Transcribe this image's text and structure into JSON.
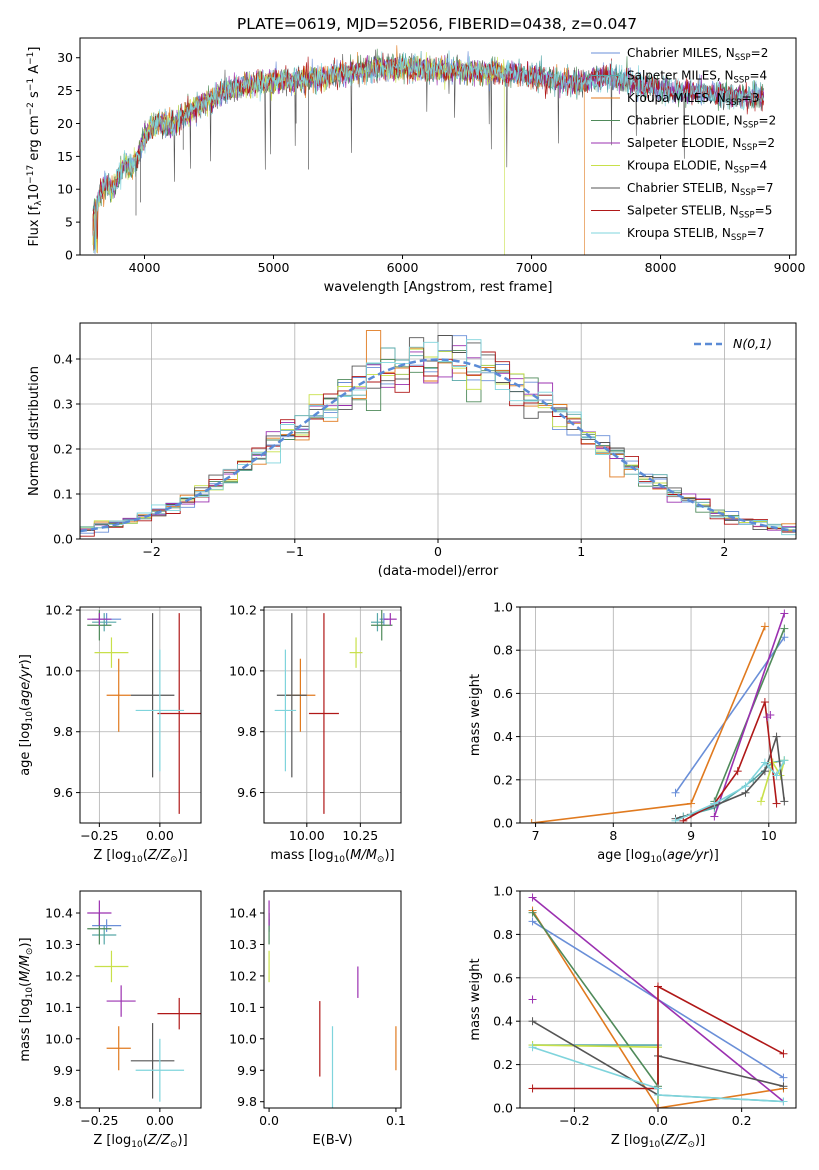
{
  "title": "PLATE=0619, MJD=52056, FIBERID=0438, z=0.047",
  "models": [
    {
      "name": "Chabrier MILES",
      "nssp": "2",
      "color": "#6a8fd8"
    },
    {
      "name": "Salpeter MILES",
      "nssp": "4",
      "color": "#57a8a8"
    },
    {
      "name": "Kroupa MILES",
      "nssp": "3",
      "color": "#e07a1f"
    },
    {
      "name": "Chabrier ELODIE",
      "nssp": "2",
      "color": "#4f8a5a"
    },
    {
      "name": "Salpeter ELODIE",
      "nssp": "2",
      "color": "#9b30b0"
    },
    {
      "name": "Kroupa ELODIE",
      "nssp": "4",
      "color": "#c8e04a"
    },
    {
      "name": "Chabrier STELIB",
      "nssp": "7",
      "color": "#555555"
    },
    {
      "name": "Salpeter STELIB",
      "nssp": "5",
      "color": "#b01818"
    },
    {
      "name": "Kroupa STELIB",
      "nssp": "7",
      "color": "#7fd4dc"
    }
  ],
  "chart_data": [
    {
      "type": "line",
      "title": "PLATE=0619, MJD=52056, FIBERID=0438, z=0.047",
      "xlabel": "wavelength [Angstrom, rest frame]",
      "ylabel": "Flux [f_λ 10^-17 erg cm^-2 s^-1 A^-1]",
      "xlim": [
        3500,
        9050
      ],
      "ylim": [
        0,
        33
      ],
      "xticks": [
        4000,
        5000,
        6000,
        7000,
        8000,
        9000
      ],
      "yticks": [
        0,
        5,
        10,
        15,
        20,
        25,
        30
      ],
      "legend": "upper right",
      "spectrum_anchor": {
        "x": [
          3600,
          3650,
          3700,
          3750,
          3800,
          3850,
          3900,
          3950,
          4000,
          4100,
          4200,
          4300,
          4400,
          4500,
          4700,
          5000,
          5200,
          5500,
          5800,
          6000,
          6300,
          6600,
          6900,
          7200,
          7400,
          7600,
          8000,
          8400,
          8800
        ],
        "y": [
          6,
          9,
          11,
          10,
          12,
          14,
          13,
          15,
          18,
          20,
          19.5,
          21,
          22.5,
          23.5,
          25.5,
          26.5,
          26.5,
          27.5,
          28.5,
          28.5,
          28.2,
          27.8,
          27.5,
          26.5,
          26.3,
          27,
          25.2,
          24.5,
          24
        ]
      },
      "model_end_x": [
        8800,
        8800,
        7410,
        8800,
        8800,
        6790,
        8800,
        8800,
        8800
      ]
    },
    {
      "type": "histogram",
      "xlabel": "(data-model)/error",
      "ylabel": "Normed distribution",
      "xlim": [
        -2.5,
        2.5
      ],
      "ylim": [
        0,
        0.48
      ],
      "xticks": [
        -2,
        -1,
        0,
        1,
        2
      ],
      "yticks": [
        0.0,
        0.1,
        0.2,
        0.3,
        0.4
      ],
      "grid": true,
      "legend": "upper right",
      "reference_label": "N(0,1)",
      "reference_color": "#5b8bd6",
      "bins": {
        "start": -2.5,
        "width": 0.1,
        "count": 50
      }
    },
    {
      "type": "scatter",
      "xlabel": "Z [log10(Z/Z⊙)]",
      "ylabel": "age [log10(age/yr)]",
      "xlim": [
        -0.33,
        0.17
      ],
      "ylim": [
        9.5,
        10.21
      ],
      "xticks": [
        -0.25,
        0.0
      ],
      "yticks": [
        9.6,
        9.8,
        10.0,
        10.2
      ],
      "grid": true,
      "points": [
        {
          "m": 0,
          "x": -0.22,
          "y": 10.17,
          "xerr": 0.06,
          "yerr": 0.02
        },
        {
          "m": 1,
          "x": -0.23,
          "y": 10.16,
          "xerr": 0.05,
          "yerr": 0.03
        },
        {
          "m": 2,
          "x": -0.17,
          "y": 9.92,
          "xerr": 0.05,
          "yerr": 0.12
        },
        {
          "m": 3,
          "x": -0.25,
          "y": 10.15,
          "xerr": 0.05,
          "yerr": 0.05
        },
        {
          "m": 4,
          "x": -0.25,
          "y": 10.17,
          "xerr": 0.05,
          "yerr": 0.02
        },
        {
          "m": 5,
          "x": -0.2,
          "y": 10.06,
          "xerr": 0.07,
          "yerr": 0.05
        },
        {
          "m": 6,
          "x": -0.03,
          "y": 9.92,
          "xerr": 0.09,
          "yerr": 0.27
        },
        {
          "m": 7,
          "x": 0.08,
          "y": 9.86,
          "xerr": 0.09,
          "yerr": 0.33
        },
        {
          "m": 8,
          "x": 0.0,
          "y": 9.87,
          "xerr": 0.1,
          "yerr": 0.2
        }
      ]
    },
    {
      "type": "scatter",
      "xlabel": "mass [log10(M/M⊙)]",
      "ylabel": "",
      "xlim": [
        9.8,
        10.44
      ],
      "ylim": [
        9.5,
        10.21
      ],
      "xticks": [
        10.0,
        10.25
      ],
      "yticks": [
        9.6,
        9.8,
        10.0,
        10.2
      ],
      "grid": true,
      "points": [
        {
          "m": 0,
          "x": 10.36,
          "y": 10.17,
          "xerr": 0.02,
          "yerr": 0.02
        },
        {
          "m": 1,
          "x": 10.33,
          "y": 10.16,
          "xerr": 0.03,
          "yerr": 0.03
        },
        {
          "m": 2,
          "x": 9.97,
          "y": 9.92,
          "xerr": 0.07,
          "yerr": 0.12
        },
        {
          "m": 3,
          "x": 10.35,
          "y": 10.15,
          "xerr": 0.05,
          "yerr": 0.05
        },
        {
          "m": 4,
          "x": 10.39,
          "y": 10.17,
          "xerr": 0.03,
          "yerr": 0.02
        },
        {
          "m": 5,
          "x": 10.23,
          "y": 10.06,
          "xerr": 0.03,
          "yerr": 0.05
        },
        {
          "m": 6,
          "x": 9.93,
          "y": 9.92,
          "xerr": 0.07,
          "yerr": 0.27
        },
        {
          "m": 7,
          "x": 10.08,
          "y": 9.86,
          "xerr": 0.07,
          "yerr": 0.33
        },
        {
          "m": 8,
          "x": 9.9,
          "y": 9.87,
          "xerr": 0.05,
          "yerr": 0.2
        }
      ]
    },
    {
      "type": "line",
      "xlabel": "age [log10(age/yr)]",
      "ylabel": "mass weight",
      "xlim": [
        6.8,
        10.35
      ],
      "ylim": [
        0,
        1.0
      ],
      "xticks": [
        7,
        8,
        9,
        10
      ],
      "yticks": [
        0.0,
        0.2,
        0.4,
        0.6,
        0.8,
        1.0
      ],
      "grid": true,
      "series": [
        {
          "m": 0,
          "x": [
            8.8,
            10.2
          ],
          "y": [
            0.14,
            0.86
          ]
        },
        {
          "m": 1,
          "x": [
            8.9,
            9.3,
            9.8,
            10.05,
            10.2
          ],
          "y": [
            0.03,
            0.07,
            0.2,
            0.28,
            0.29
          ]
        },
        {
          "m": 2,
          "x": [
            6.95,
            9.0,
            9.95
          ],
          "y": [
            0.0,
            0.09,
            0.91
          ]
        },
        {
          "m": 3,
          "x": [
            9.3,
            10.2
          ],
          "y": [
            0.1,
            0.9
          ]
        },
        {
          "m": 4,
          "x": [
            9.3,
            10.2
          ],
          "y": [
            0.03,
            0.97
          ]
        },
        {
          "m": 5,
          "x": [
            9.9,
            10.05,
            10.15,
            10.2
          ],
          "y": [
            0.1,
            0.28,
            0.22,
            0.29
          ]
        },
        {
          "m": 6,
          "x": [
            8.8,
            9.0,
            9.3,
            9.7,
            9.95,
            10.1,
            10.2
          ],
          "y": [
            0.02,
            0.04,
            0.08,
            0.14,
            0.24,
            0.4,
            0.1
          ]
        },
        {
          "m": 7,
          "x": [
            8.9,
            9.3,
            9.6,
            9.95,
            10.1
          ],
          "y": [
            0.01,
            0.09,
            0.24,
            0.56,
            0.09
          ]
        },
        {
          "m": 8,
          "x": [
            8.8,
            9.3,
            9.7,
            9.95,
            10.1,
            10.2
          ],
          "y": [
            0.01,
            0.09,
            0.17,
            0.28,
            0.22,
            0.29
          ]
        }
      ],
      "extra_points": [
        {
          "m": 4,
          "x": 9.98,
          "y": 0.49
        },
        {
          "m": 4,
          "x": 10.02,
          "y": 0.5
        }
      ]
    },
    {
      "type": "scatter",
      "xlabel": "Z [log10(Z/Z⊙)]",
      "ylabel": "mass [log10(M/M⊙)]",
      "xlim": [
        -0.33,
        0.17
      ],
      "ylim": [
        9.78,
        10.47
      ],
      "xticks": [
        -0.25,
        0.0
      ],
      "yticks": [
        9.8,
        9.9,
        10.0,
        10.1,
        10.2,
        10.3,
        10.4
      ],
      "grid": false,
      "points": [
        {
          "m": 0,
          "x": -0.22,
          "y": 10.36,
          "xerr": 0.06,
          "yerr": 0.02
        },
        {
          "m": 1,
          "x": -0.23,
          "y": 10.33,
          "xerr": 0.05,
          "yerr": 0.03
        },
        {
          "m": 2,
          "x": -0.17,
          "y": 9.97,
          "xerr": 0.05,
          "yerr": 0.07
        },
        {
          "m": 3,
          "x": -0.25,
          "y": 10.35,
          "xerr": 0.05,
          "yerr": 0.05
        },
        {
          "m": 4,
          "x": -0.25,
          "y": 10.4,
          "xerr": 0.05,
          "yerr": 0.04
        },
        {
          "m": 5,
          "x": -0.2,
          "y": 10.23,
          "xerr": 0.07,
          "yerr": 0.05
        },
        {
          "m": 6,
          "x": -0.03,
          "y": 9.93,
          "xerr": 0.09,
          "yerr": 0.12
        },
        {
          "m": 7,
          "x": 0.08,
          "y": 10.08,
          "xerr": 0.09,
          "yerr": 0.05
        },
        {
          "m": 8,
          "x": 0.0,
          "y": 9.9,
          "xerr": 0.1,
          "yerr": 0.1
        },
        {
          "m": 4,
          "x": -0.16,
          "y": 10.12,
          "xerr": 0.06,
          "yerr": 0.05
        }
      ]
    },
    {
      "type": "scatter",
      "xlabel": "E(B-V)",
      "ylabel": "",
      "xlim": [
        -0.004,
        0.104
      ],
      "ylim": [
        9.78,
        10.47
      ],
      "xticks": [
        0.0,
        0.1
      ],
      "yticks": [
        9.8,
        9.9,
        10.0,
        10.1,
        10.2,
        10.3,
        10.4
      ],
      "grid": false,
      "points": [
        {
          "m": 0,
          "x": 0.0,
          "y": 10.36,
          "xerr": 0,
          "yerr": 0.02
        },
        {
          "m": 3,
          "x": 0.0,
          "y": 10.35,
          "xerr": 0,
          "yerr": 0.05
        },
        {
          "m": 4,
          "x": 0.0,
          "y": 10.4,
          "xerr": 0,
          "yerr": 0.04
        },
        {
          "m": 5,
          "x": 0.0,
          "y": 10.23,
          "xerr": 0,
          "yerr": 0.05
        },
        {
          "m": 7,
          "x": 0.04,
          "y": 10.0,
          "xerr": 0,
          "yerr": 0.12
        },
        {
          "m": 8,
          "x": 0.05,
          "y": 9.91,
          "xerr": 0,
          "yerr": 0.13
        },
        {
          "m": 4,
          "x": 0.07,
          "y": 10.18,
          "xerr": 0,
          "yerr": 0.05
        },
        {
          "m": 2,
          "x": 0.1,
          "y": 9.97,
          "xerr": 0,
          "yerr": 0.07
        }
      ]
    },
    {
      "type": "line",
      "xlabel": "Z [log10(Z/Z⊙)]",
      "ylabel": "mass weight",
      "xlim": [
        -0.33,
        0.33
      ],
      "ylim": [
        0,
        1.0
      ],
      "xticks": [
        -0.2,
        0.0,
        0.2
      ],
      "yticks": [
        0.0,
        0.2,
        0.4,
        0.6,
        0.8,
        1.0
      ],
      "grid": true,
      "series": [
        {
          "m": 0,
          "x": [
            -0.3,
            0.3
          ],
          "y": [
            0.86,
            0.14
          ]
        },
        {
          "m": 1,
          "x": [
            -0.3,
            0.0,
            0.0,
            0.3
          ],
          "y": [
            0.29,
            0.29,
            0.06,
            0.03
          ]
        },
        {
          "m": 2,
          "x": [
            -0.3,
            0.0,
            0.3
          ],
          "y": [
            0.91,
            0.0,
            0.09
          ]
        },
        {
          "m": 3,
          "x": [
            -0.3,
            0.0,
            0.0
          ],
          "y": [
            0.9,
            0.1,
            0.0
          ]
        },
        {
          "m": 4,
          "x": [
            -0.3,
            0.3
          ],
          "y": [
            0.97,
            0.03
          ]
        },
        {
          "m": 5,
          "x": [
            -0.3,
            0.0,
            0.0
          ],
          "y": [
            0.29,
            0.28,
            0.0
          ]
        },
        {
          "m": 6,
          "x": [
            -0.3,
            0.0,
            0.0,
            0.3
          ],
          "y": [
            0.4,
            0.06,
            0.24,
            0.1
          ]
        },
        {
          "m": 7,
          "x": [
            -0.3,
            0.0,
            0.0,
            0.3
          ],
          "y": [
            0.09,
            0.09,
            0.56,
            0.25
          ]
        },
        {
          "m": 8,
          "x": [
            -0.3,
            0.0,
            0.0,
            0.3
          ],
          "y": [
            0.28,
            0.09,
            0.06,
            0.03
          ]
        }
      ],
      "extra_points": [
        {
          "m": 4,
          "x": -0.3,
          "y": 0.5
        },
        {
          "m": 4,
          "x": 0.0,
          "y": 0.0
        }
      ]
    }
  ]
}
